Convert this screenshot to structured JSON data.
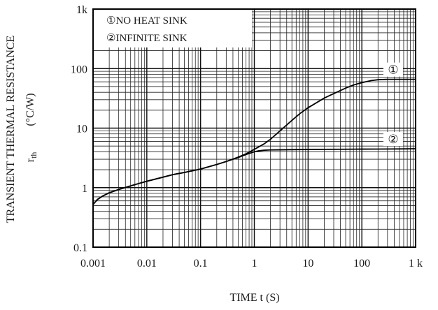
{
  "chart_data": {
    "type": "line",
    "title": "",
    "xlabel": "TIME  t  (S)",
    "ylabel": "TRANSIENT THERMAL RESISTANCE",
    "ylabel_symbol": "r",
    "ylabel_subscript": "th",
    "ylabel_unit": "(°C/W)",
    "x_scale": "log",
    "y_scale": "log",
    "xlim": [
      0.001,
      1000
    ],
    "ylim": [
      0.1,
      1000
    ],
    "x_ticks": [
      {
        "value": 0.001,
        "label": "0.001"
      },
      {
        "value": 0.01,
        "label": "0.01"
      },
      {
        "value": 0.1,
        "label": "0.1"
      },
      {
        "value": 1,
        "label": "1"
      },
      {
        "value": 10,
        "label": "10"
      },
      {
        "value": 100,
        "label": "100"
      },
      {
        "value": 1000,
        "label": "1 k"
      }
    ],
    "y_ticks": [
      {
        "value": 0.1,
        "label": "0.1"
      },
      {
        "value": 1,
        "label": "1"
      },
      {
        "value": 10,
        "label": "10"
      },
      {
        "value": 100,
        "label": "100"
      },
      {
        "value": 1000,
        "label": "1k"
      }
    ],
    "grid": true,
    "legend": {
      "placement": "top-left",
      "entries": [
        "①NO HEAT SINK",
        "②INFINITE SINK"
      ]
    },
    "series": [
      {
        "marker": "①",
        "x": [
          0.001,
          0.0012,
          0.0015,
          0.002,
          0.003,
          0.005,
          0.007,
          0.01,
          0.02,
          0.03,
          0.05,
          0.07,
          0.1,
          0.2,
          0.3,
          0.5,
          0.7,
          1,
          1.5,
          2,
          3,
          5,
          7,
          10,
          20,
          30,
          50,
          70,
          100,
          150,
          200,
          300,
          500,
          1000
        ],
        "y": [
          0.52,
          0.63,
          0.72,
          0.82,
          0.93,
          1.07,
          1.17,
          1.28,
          1.5,
          1.65,
          1.8,
          1.92,
          2.05,
          2.45,
          2.75,
          3.25,
          3.7,
          4.4,
          5.4,
          6.5,
          9.0,
          13.5,
          17.5,
          22,
          32,
          38,
          47,
          53,
          58,
          63,
          65,
          66,
          66,
          66
        ]
      },
      {
        "marker": "②",
        "x": [
          0.001,
          0.0012,
          0.0015,
          0.002,
          0.003,
          0.005,
          0.007,
          0.01,
          0.02,
          0.03,
          0.05,
          0.07,
          0.1,
          0.2,
          0.3,
          0.5,
          0.7,
          1,
          1.2,
          1.5,
          2,
          3,
          5,
          10,
          20,
          50,
          100,
          200,
          500,
          1000
        ],
        "y": [
          0.52,
          0.63,
          0.72,
          0.82,
          0.93,
          1.07,
          1.17,
          1.28,
          1.5,
          1.65,
          1.8,
          1.92,
          2.05,
          2.45,
          2.75,
          3.2,
          3.6,
          4.0,
          4.15,
          4.25,
          4.3,
          4.32,
          4.35,
          4.38,
          4.4,
          4.42,
          4.44,
          4.45,
          4.47,
          4.5
        ]
      }
    ]
  }
}
